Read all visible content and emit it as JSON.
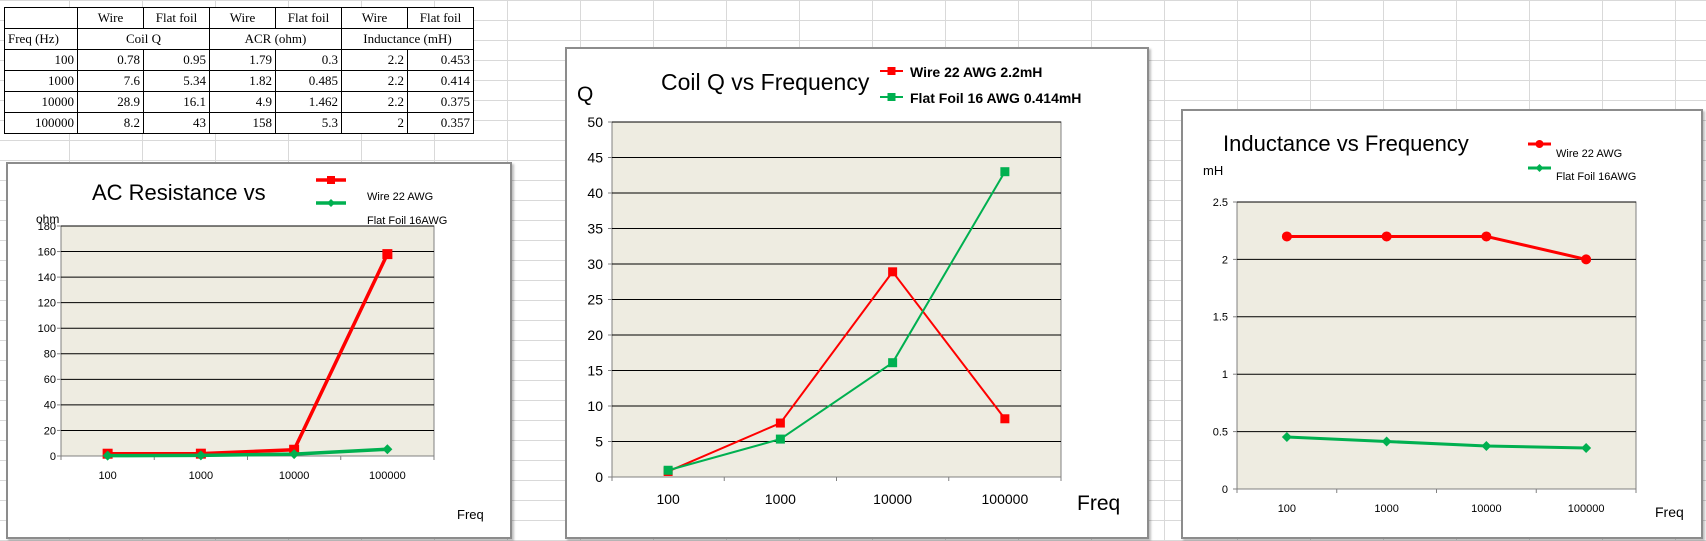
{
  "table": {
    "series_headers": [
      "Wire",
      "Flat foil",
      "Wire",
      "Flat foil",
      "Wire",
      "Flat foil"
    ],
    "freq_header": "Freq (Hz)",
    "group_headers": [
      "Coil Q",
      "ACR (ohm)",
      "Inductance (mH)"
    ],
    "rows": [
      [
        "100",
        "0.78",
        "0.95",
        "1.79",
        "0.3",
        "2.2",
        "0.453"
      ],
      [
        "1000",
        "7.6",
        "5.34",
        "1.82",
        "0.485",
        "2.2",
        "0.414"
      ],
      [
        "10000",
        "28.9",
        "16.1",
        "4.9",
        "1.462",
        "2.2",
        "0.375"
      ],
      [
        "100000",
        "8.2",
        "43",
        "158",
        "5.3",
        "2",
        "0.357"
      ]
    ]
  },
  "colors": {
    "wire": "#ff0000",
    "foil": "#00b050",
    "plot_bg": "#eeece1"
  },
  "chart_data": [
    {
      "type": "line",
      "title": "AC Resistance vs",
      "ylabel": "ohm",
      "xlabel": "Freq",
      "categories": [
        "100",
        "1000",
        "10000",
        "100000"
      ],
      "ylim": [
        0,
        180
      ],
      "yticks": [
        0,
        20,
        40,
        60,
        80,
        100,
        120,
        140,
        160,
        180
      ],
      "legend_position": "top-right",
      "grid": true,
      "series": [
        {
          "name": "Wire 22 AWG",
          "values": [
            1.79,
            1.82,
            4.9,
            158
          ],
          "marker": "square"
        },
        {
          "name": "Flat Foil 16AWG",
          "values": [
            0.3,
            0.485,
            1.462,
            5.3
          ],
          "marker": "diamond"
        }
      ]
    },
    {
      "type": "line",
      "title": "Coil Q vs Frequency",
      "ylabel": "Q",
      "xlabel": "Freq",
      "categories": [
        "100",
        "1000",
        "10000",
        "100000"
      ],
      "ylim": [
        0,
        50
      ],
      "yticks": [
        0,
        5,
        10,
        15,
        20,
        25,
        30,
        35,
        40,
        45,
        50
      ],
      "legend_position": "top-right",
      "grid": true,
      "series": [
        {
          "name": "Wire  22 AWG  2.2mH",
          "values": [
            0.78,
            7.6,
            28.9,
            8.2
          ],
          "marker": "square"
        },
        {
          "name": "Flat Foil  16 AWG  0.414mH",
          "values": [
            0.95,
            5.34,
            16.1,
            43
          ],
          "marker": "square"
        }
      ]
    },
    {
      "type": "line",
      "title": "Inductance vs Frequency",
      "ylabel": "mH",
      "xlabel": "Freq",
      "categories": [
        "100",
        "1000",
        "10000",
        "100000"
      ],
      "ylim": [
        0,
        2.5
      ],
      "yticks": [
        0,
        0.5,
        1,
        1.5,
        2,
        2.5
      ],
      "legend_position": "top-right",
      "grid": true,
      "series": [
        {
          "name": "Wire 22 AWG",
          "values": [
            2.2,
            2.2,
            2.2,
            2.0
          ],
          "marker": "circle"
        },
        {
          "name": "Flat Foil 16AWG",
          "values": [
            0.453,
            0.414,
            0.375,
            0.357
          ],
          "marker": "diamond"
        }
      ]
    }
  ]
}
